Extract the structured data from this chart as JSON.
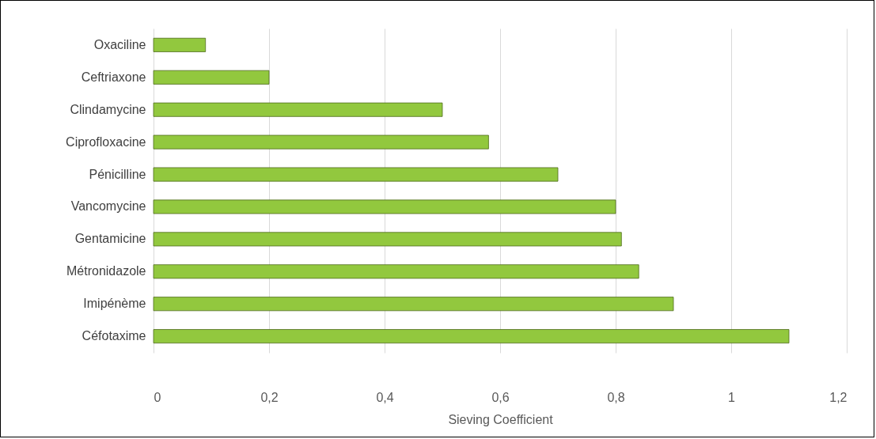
{
  "chart_data": {
    "type": "bar",
    "orientation": "horizontal",
    "xlabel": "Sieving Coefficient",
    "categories": [
      "Oxaciline",
      "Ceftriaxone",
      "Clindamycine",
      "Ciprofloxacine",
      "Pénicilline",
      "Vancomycine",
      "Gentamicine",
      "Métronidazole",
      "Imipénème",
      "Céfotaxime"
    ],
    "values": [
      0.09,
      0.2,
      0.5,
      0.58,
      0.7,
      0.8,
      0.81,
      0.84,
      0.9,
      1.1
    ],
    "color": "#92c83e",
    "xlim": [
      0,
      1.2
    ],
    "xticks": [
      0,
      {
        "value": 0.2,
        "label": "0,2"
      },
      {
        "value": 0.4,
        "label": "0,4"
      },
      {
        "value": 0.6,
        "label": "0,6"
      },
      {
        "value": 0.8,
        "label": "0,8"
      },
      1,
      {
        "value": 1.2,
        "label": "1,2"
      }
    ],
    "grid": "x"
  }
}
